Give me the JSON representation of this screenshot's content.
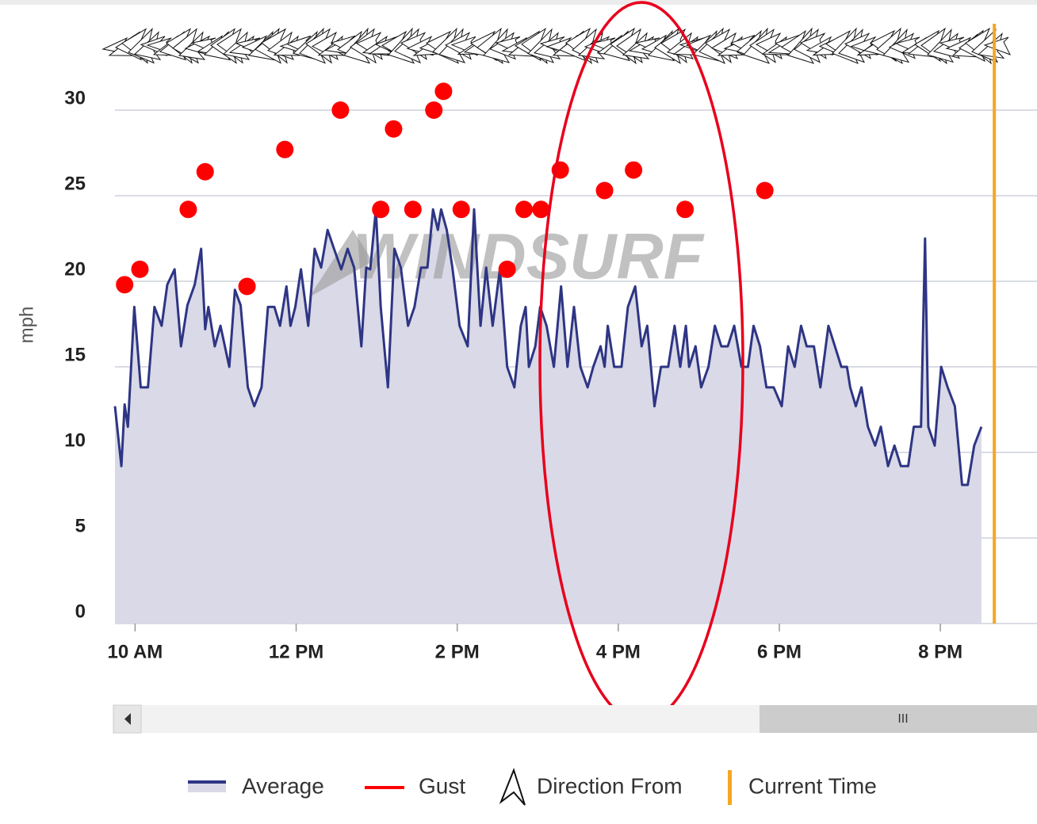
{
  "chart_data": {
    "type": "line",
    "y_label": "mph",
    "watermark": "WINDSURF",
    "ylim": [
      0,
      30
    ],
    "yticks": [
      0,
      5,
      10,
      15,
      20,
      25,
      30
    ],
    "xlim": [
      9.75,
      21.2
    ],
    "xticks": [
      {
        "value": 10,
        "label": "10 AM"
      },
      {
        "value": 12,
        "label": "12 PM"
      },
      {
        "value": 14,
        "label": "2 PM"
      },
      {
        "value": 16,
        "label": "4 PM"
      },
      {
        "value": 18,
        "label": "6 PM"
      },
      {
        "value": 20,
        "label": "8 PM"
      }
    ],
    "grid": true,
    "series": [
      {
        "name": "Average",
        "kind": "area",
        "color": "#2e3584",
        "fill": "#d9d9e7",
        "x": [
          9.75,
          9.83,
          9.87,
          9.91,
          9.99,
          10.07,
          10.16,
          10.24,
          10.33,
          10.4,
          10.49,
          10.57,
          10.65,
          10.74,
          10.82,
          10.87,
          10.91,
          10.99,
          11.06,
          11.17,
          11.24,
          11.31,
          11.4,
          11.48,
          11.57,
          11.65,
          11.73,
          11.8,
          11.88,
          11.93,
          11.99,
          12.06,
          12.15,
          12.23,
          12.31,
          12.39,
          12.47,
          12.56,
          12.64,
          12.72,
          12.81,
          12.87,
          12.92,
          12.99,
          13.05,
          13.14,
          13.22,
          13.3,
          13.39,
          13.47,
          13.55,
          13.63,
          13.7,
          13.76,
          13.8,
          13.87,
          13.94,
          14.03,
          14.13,
          14.21,
          14.29,
          14.36,
          14.44,
          14.53,
          14.62,
          14.71,
          14.79,
          14.85,
          14.89,
          14.97,
          15.03,
          15.11,
          15.2,
          15.29,
          15.37,
          15.45,
          15.53,
          15.62,
          15.69,
          15.78,
          15.83,
          15.87,
          15.95,
          16.04,
          16.12,
          16.21,
          16.29,
          16.36,
          16.45,
          16.53,
          16.62,
          16.7,
          16.77,
          16.84,
          16.88,
          16.96,
          17.03,
          17.12,
          17.2,
          17.28,
          17.36,
          17.44,
          17.53,
          17.61,
          17.68,
          17.76,
          17.84,
          17.93,
          18.03,
          18.11,
          18.19,
          18.27,
          18.34,
          18.43,
          18.51,
          18.61,
          18.69,
          18.77,
          18.84,
          18.88,
          18.95,
          19.02,
          19.1,
          19.19,
          19.26,
          19.35,
          19.43,
          19.51,
          19.6,
          19.67,
          19.76,
          19.81,
          19.85,
          19.93,
          20.01,
          20.09,
          20.18,
          20.27,
          20.34,
          20.42,
          20.51
        ],
        "values": [
          12.7,
          9.2,
          12.8,
          11.5,
          18.5,
          13.8,
          13.8,
          18.5,
          17.4,
          19.8,
          20.7,
          16.2,
          18.6,
          19.8,
          21.9,
          17.2,
          18.5,
          16.2,
          17.4,
          15.0,
          19.5,
          18.6,
          13.8,
          12.7,
          13.8,
          18.5,
          18.5,
          17.4,
          19.7,
          17.4,
          18.5,
          20.7,
          17.4,
          21.9,
          20.8,
          23.0,
          21.9,
          20.7,
          21.9,
          20.8,
          16.2,
          20.8,
          20.7,
          24.2,
          18.5,
          13.8,
          21.9,
          20.8,
          17.4,
          18.5,
          20.8,
          20.8,
          24.2,
          23.0,
          24.2,
          23.0,
          20.8,
          17.4,
          16.2,
          24.2,
          17.4,
          20.8,
          17.4,
          20.7,
          15.0,
          13.8,
          17.4,
          18.5,
          15.0,
          16.2,
          18.5,
          17.4,
          15.0,
          19.7,
          15.0,
          18.5,
          15.0,
          13.8,
          15.0,
          16.2,
          15.0,
          17.4,
          15.0,
          15.0,
          18.5,
          19.7,
          16.2,
          17.4,
          12.7,
          15.0,
          15.0,
          17.4,
          15.0,
          17.4,
          15.0,
          16.2,
          13.8,
          15.0,
          17.4,
          16.2,
          16.2,
          17.4,
          15.0,
          15.0,
          17.4,
          16.2,
          13.8,
          13.8,
          12.7,
          16.2,
          15.0,
          17.4,
          16.2,
          16.2,
          13.8,
          17.4,
          16.2,
          15.0,
          15.0,
          13.8,
          12.7,
          13.8,
          11.5,
          10.4,
          11.5,
          9.2,
          10.4,
          9.2,
          9.2,
          11.5,
          11.5,
          22.5,
          11.5,
          10.4,
          15.0,
          13.8,
          12.7,
          8.1,
          8.1,
          10.4,
          11.5
        ]
      },
      {
        "name": "Gust",
        "kind": "markers",
        "color": "#ff0000",
        "x": [
          9.87,
          10.06,
          10.66,
          10.87,
          11.39,
          11.86,
          12.55,
          13.05,
          13.21,
          13.45,
          13.71,
          13.83,
          14.05,
          14.62,
          14.83,
          15.04,
          15.28,
          15.83,
          16.19,
          16.83,
          17.82
        ],
        "values": [
          19.8,
          20.7,
          24.2,
          26.4,
          19.7,
          27.7,
          30.0,
          24.2,
          28.9,
          24.2,
          30.0,
          31.1,
          24.2,
          20.7,
          24.2,
          24.2,
          26.5,
          25.3,
          26.5,
          24.2,
          25.3
        ]
      }
    ],
    "direction_label": "Direction From",
    "current_time": 20.67,
    "current_time_label": "Current Time",
    "current_time_color": "#f5a623",
    "scrollbar_grip": "III"
  }
}
